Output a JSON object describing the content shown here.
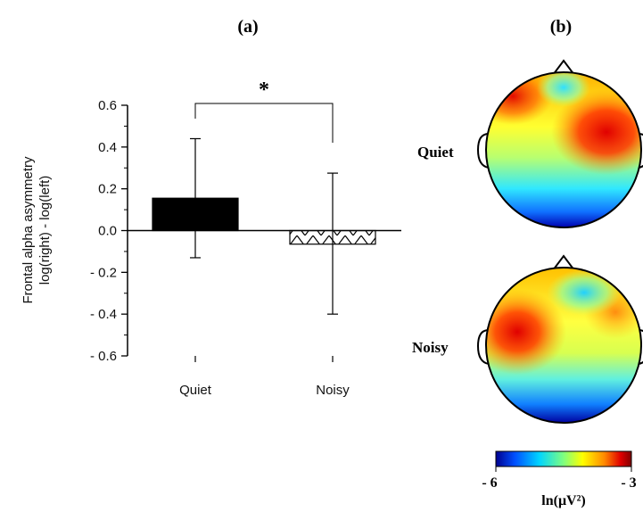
{
  "panel_a_label": "(a)",
  "panel_b_label": "(b)",
  "chart_data": {
    "type": "bar",
    "title": "",
    "ylabel": "Frontal alpha asymmetry",
    "ylabel2": "log(right) - log(left)",
    "xlabel": "",
    "categories": [
      "Quiet",
      "Noisy"
    ],
    "values": [
      0.155,
      -0.065
    ],
    "error_low": [
      -0.13,
      -0.4
    ],
    "error_high": [
      0.44,
      0.275
    ],
    "ylim": [
      -0.6,
      0.6
    ],
    "yticks": [
      0.6,
      0.4,
      0.2,
      0.0,
      -0.2,
      -0.4,
      -0.6
    ],
    "ytick_labels": [
      "0.6",
      "0.4",
      "0.2",
      "0.0",
      "- 0.2",
      "- 0.4",
      "- 0.6"
    ],
    "bar_styles": [
      "solid-black",
      "hatched"
    ],
    "significance": "*",
    "grid": false,
    "legend": "none"
  },
  "topomaps": {
    "rows": [
      {
        "label": "Quiet",
        "hotspot": "right-frontal"
      },
      {
        "label": "Noisy",
        "hotspot": "left-frontal"
      }
    ],
    "colorbar": {
      "min_label": "- 6",
      "max_label": "- 3",
      "unit_label": "ln(μV²)",
      "colors": [
        "#00008f",
        "#0050ff",
        "#00d4ff",
        "#7fff7f",
        "#ffff00",
        "#ff8a00",
        "#d00000",
        "#800000"
      ]
    }
  }
}
